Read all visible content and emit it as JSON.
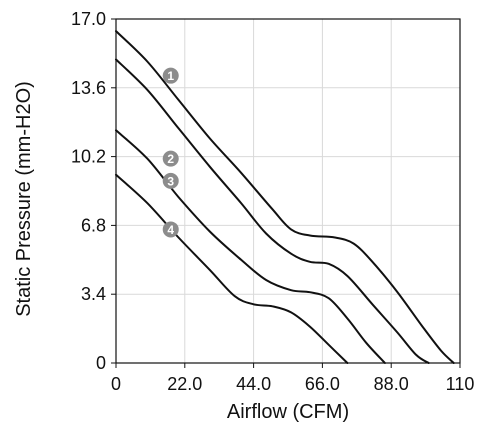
{
  "chart_data": {
    "type": "line",
    "xlabel": "Airflow (CFM)",
    "ylabel": "Static Pressure (mm-H2O)",
    "xlim": [
      0,
      110
    ],
    "ylim": [
      0,
      17
    ],
    "x_ticks": [
      "0",
      "22.0",
      "44.0",
      "66.0",
      "88.0",
      "110"
    ],
    "y_ticks": [
      "0",
      "3.4",
      "6.8",
      "10.2",
      "13.6",
      "17.0"
    ],
    "grid": true,
    "colors": {
      "curve": "#111111",
      "grid": "#d9d9d9",
      "axis": "#111111",
      "marker": "#8c8c8c"
    },
    "series": [
      {
        "name": "1",
        "points": [
          [
            0,
            16.4
          ],
          [
            10,
            14.9
          ],
          [
            20,
            13.0
          ],
          [
            30,
            11.1
          ],
          [
            40,
            9.4
          ],
          [
            50,
            7.6
          ],
          [
            56,
            6.6
          ],
          [
            62,
            6.3
          ],
          [
            70,
            6.2
          ],
          [
            76,
            5.9
          ],
          [
            82,
            5.0
          ],
          [
            90,
            3.5
          ],
          [
            98,
            1.8
          ],
          [
            104,
            0.6
          ],
          [
            108,
            0
          ]
        ]
      },
      {
        "name": "2",
        "points": [
          [
            0,
            15.0
          ],
          [
            10,
            13.5
          ],
          [
            20,
            11.6
          ],
          [
            30,
            9.7
          ],
          [
            40,
            7.9
          ],
          [
            48,
            6.4
          ],
          [
            56,
            5.4
          ],
          [
            62,
            5.0
          ],
          [
            68,
            4.9
          ],
          [
            74,
            4.3
          ],
          [
            82,
            2.9
          ],
          [
            90,
            1.5
          ],
          [
            96,
            0.4
          ],
          [
            100,
            0
          ]
        ]
      },
      {
        "name": "3",
        "points": [
          [
            0,
            11.5
          ],
          [
            10,
            10.1
          ],
          [
            20,
            8.2
          ],
          [
            30,
            6.5
          ],
          [
            40,
            5.1
          ],
          [
            48,
            4.1
          ],
          [
            56,
            3.6
          ],
          [
            62,
            3.5
          ],
          [
            68,
            3.2
          ],
          [
            74,
            2.2
          ],
          [
            80,
            1.0
          ],
          [
            86,
            0
          ]
        ]
      },
      {
        "name": "4",
        "points": [
          [
            0,
            9.3
          ],
          [
            10,
            7.9
          ],
          [
            20,
            6.2
          ],
          [
            30,
            4.6
          ],
          [
            38,
            3.3
          ],
          [
            44,
            2.9
          ],
          [
            50,
            2.8
          ],
          [
            56,
            2.5
          ],
          [
            62,
            1.8
          ],
          [
            68,
            0.9
          ],
          [
            74,
            0
          ]
        ]
      }
    ],
    "markers": [
      {
        "label": "1",
        "x": 17.5,
        "y": 14.2
      },
      {
        "label": "2",
        "x": 17.5,
        "y": 10.1
      },
      {
        "label": "3",
        "x": 17.5,
        "y": 9.0
      },
      {
        "label": "4",
        "x": 17.5,
        "y": 6.6
      }
    ]
  }
}
